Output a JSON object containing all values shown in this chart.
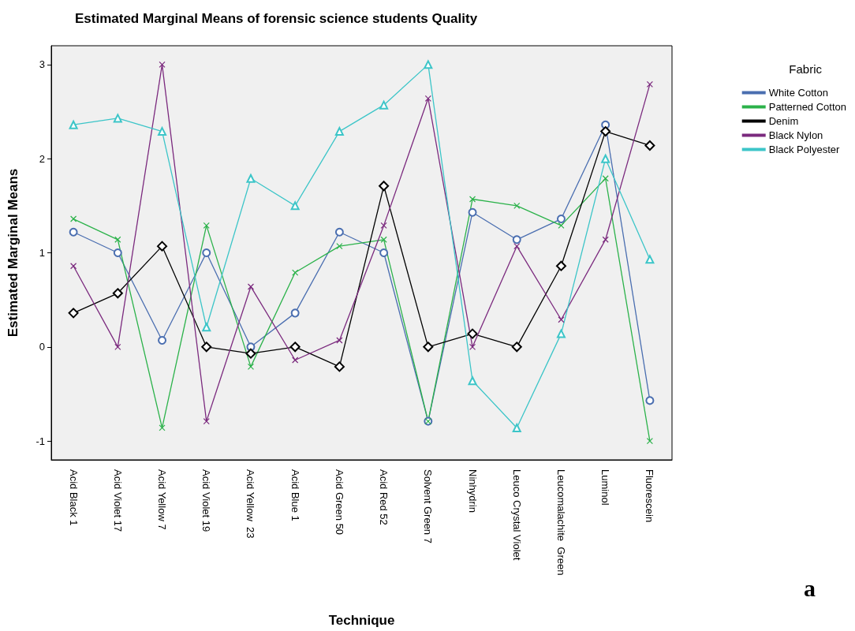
{
  "chart_data": {
    "type": "line",
    "title": "Estimated Marginal Means of forensic science students Quality",
    "xlabel": "Technique",
    "ylabel": "Estimated Marginal Means",
    "legend_title": "Fabric",
    "annotations": [
      "a"
    ],
    "categories": [
      "Acid Black 1",
      "Acid Violet 17",
      "Acid Yellow 7",
      "Acid Violet 19",
      "Acid Yellow  23",
      "Acid Blue 1",
      "Acid Green 50",
      "Acid Red 52",
      "Solvent Green 7",
      "Ninhydrin",
      "Leuco Crystal Violet",
      "Leucomalachite  Green",
      "Luminol",
      "Fluorescein"
    ],
    "series": [
      {
        "name": "White Cotton",
        "color": "#4a6eb0",
        "marker": "circle",
        "values": [
          1.22,
          1.0,
          0.07,
          1.0,
          0.0,
          0.36,
          1.22,
          1.0,
          -0.79,
          1.43,
          1.14,
          1.36,
          2.36,
          -0.57
        ]
      },
      {
        "name": "Patterned Cotton",
        "color": "#2bb24a",
        "marker": "cross",
        "values": [
          1.36,
          1.14,
          -0.86,
          1.29,
          -0.21,
          0.79,
          1.07,
          1.14,
          -0.79,
          1.57,
          1.5,
          1.29,
          1.79,
          -1.0
        ]
      },
      {
        "name": "Denim",
        "color": "#000000",
        "marker": "diamond",
        "values": [
          0.36,
          0.57,
          1.07,
          0.0,
          -0.07,
          0.0,
          -0.21,
          1.71,
          0.0,
          0.14,
          0.0,
          0.86,
          2.29,
          2.14
        ]
      },
      {
        "name": "Black Nylon",
        "color": "#7b2a7e",
        "marker": "cross",
        "values": [
          0.86,
          0.0,
          3.0,
          -0.79,
          0.64,
          -0.14,
          0.07,
          1.29,
          2.64,
          0.0,
          1.07,
          0.29,
          1.14,
          2.79
        ]
      },
      {
        "name": "Black Polyester",
        "color": "#3cc5c8",
        "marker": "triangle",
        "values": [
          2.36,
          2.43,
          2.29,
          0.21,
          1.79,
          1.5,
          2.29,
          2.57,
          3.0,
          -0.36,
          -0.86,
          0.14,
          2.0,
          0.93
        ]
      }
    ],
    "ylim": [
      -1.2,
      3.2
    ],
    "yticks": [
      -1,
      0,
      1,
      2,
      3
    ],
    "grid": false,
    "legend": "right",
    "line_style": "solid"
  }
}
